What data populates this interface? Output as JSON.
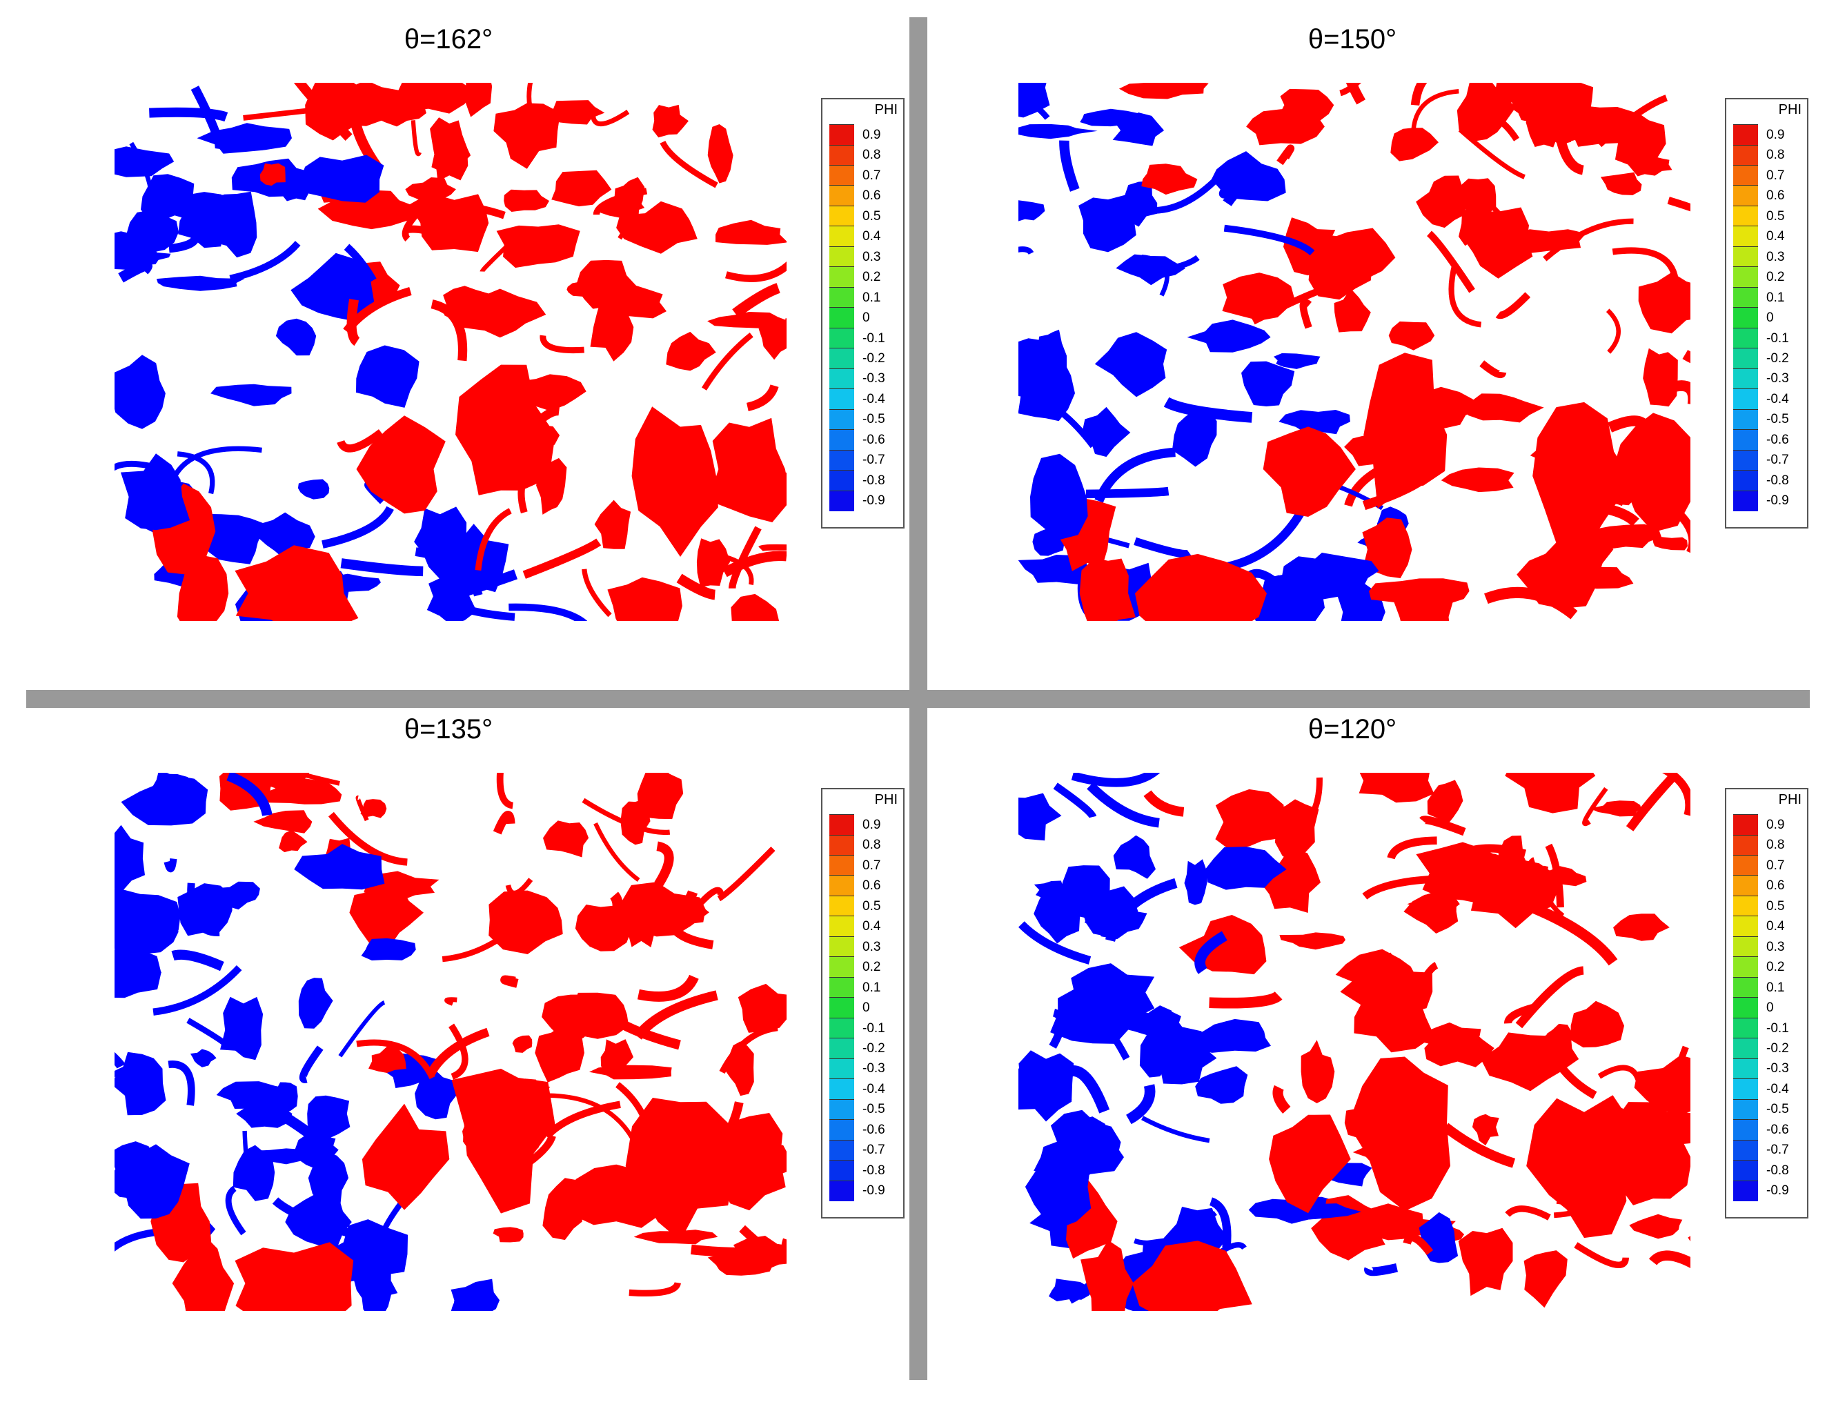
{
  "panels": [
    {
      "title": "θ=162°"
    },
    {
      "title": "θ=150°"
    },
    {
      "title": "θ=135°"
    },
    {
      "title": "θ=120°"
    }
  ],
  "legend": {
    "title": "PHI",
    "ticks": [
      "0.9",
      "0.8",
      "0.7",
      "0.6",
      "0.5",
      "0.4",
      "0.3",
      "0.2",
      "0.1",
      "0",
      "-0.1",
      "-0.2",
      "-0.3",
      "-0.4",
      "-0.5",
      "-0.6",
      "-0.7",
      "-0.8",
      "-0.9"
    ],
    "colors": [
      "#e8120a",
      "#f03c0a",
      "#f56a08",
      "#f9a006",
      "#fccd04",
      "#e6e40a",
      "#bfe814",
      "#8ee820",
      "#4fe02c",
      "#1ed83a",
      "#14d46a",
      "#10d29a",
      "#10d0c8",
      "#10c4ee",
      "#0e9ef2",
      "#0b78f2",
      "#0850f0",
      "#0530ee",
      "#0a0aee"
    ]
  },
  "colors": {
    "phase_positive": "#ff0000",
    "phase_negative": "#0000ff",
    "solid": "#ffffff",
    "divider": "#999999"
  }
}
